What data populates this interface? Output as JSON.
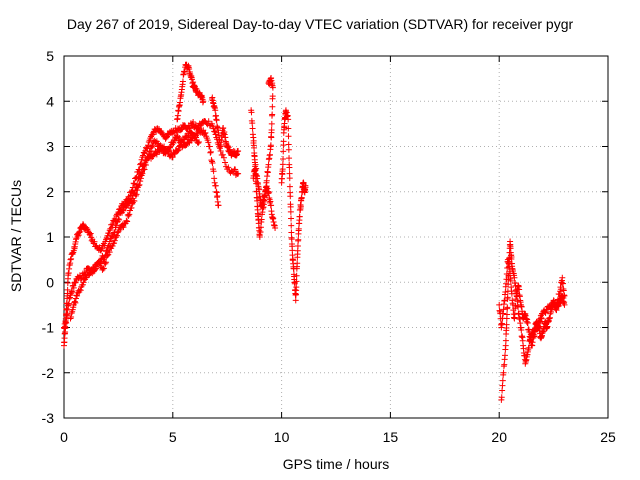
{
  "chart_data": {
    "type": "scatter",
    "title": "Day 267 of 2019, Sidereal Day-to-day VTEC variation (SDTVAR) for receiver pygr",
    "xlabel": "GPS time / hours",
    "ylabel": "SDTVAR / TECUs",
    "xlim": [
      0,
      25
    ],
    "ylim": [
      -3,
      5
    ],
    "xticks": [
      0,
      5,
      10,
      15,
      20,
      25
    ],
    "yticks": [
      -3,
      -2,
      -1,
      0,
      1,
      2,
      3,
      4,
      5
    ],
    "grid": true,
    "marker": "plus",
    "color": "#ff0000",
    "series": [
      {
        "name": "SDTVAR",
        "tracks": [
          [
            [
              0.0,
              -1.4
            ],
            [
              0.05,
              -1.1
            ],
            [
              0.1,
              -0.7
            ],
            [
              0.15,
              -0.3
            ],
            [
              0.2,
              0.2
            ],
            [
              0.3,
              0.5
            ],
            [
              0.45,
              0.7
            ],
            [
              0.55,
              0.95
            ],
            [
              0.7,
              1.1
            ],
            [
              0.85,
              1.25
            ],
            [
              1.0,
              1.2
            ],
            [
              1.15,
              1.1
            ],
            [
              1.3,
              0.95
            ],
            [
              1.5,
              0.8
            ],
            [
              1.7,
              0.7
            ],
            [
              1.9,
              0.9
            ],
            [
              2.1,
              1.15
            ],
            [
              2.3,
              1.35
            ],
            [
              2.5,
              1.55
            ],
            [
              2.7,
              1.7
            ],
            [
              2.9,
              1.8
            ],
            [
              3.1,
              2.0
            ],
            [
              3.3,
              2.3
            ],
            [
              3.5,
              2.6
            ],
            [
              3.7,
              2.85
            ],
            [
              3.9,
              3.1
            ],
            [
              4.1,
              3.3
            ],
            [
              4.3,
              3.4
            ],
            [
              4.5,
              3.3
            ],
            [
              4.7,
              3.2
            ],
            [
              4.9,
              3.3
            ],
            [
              5.1,
              3.35
            ],
            [
              5.3,
              3.4
            ],
            [
              5.5,
              3.45
            ],
            [
              5.7,
              3.4
            ],
            [
              5.9,
              3.5
            ],
            [
              6.1,
              3.4
            ],
            [
              6.3,
              3.5
            ],
            [
              6.5,
              3.55
            ],
            [
              6.8,
              3.5
            ],
            [
              7.0,
              3.2
            ],
            [
              7.2,
              2.9
            ],
            [
              7.5,
              2.5
            ],
            [
              7.8,
              2.45
            ],
            [
              8.0,
              2.4
            ]
          ],
          [
            [
              0.0,
              -1.0
            ],
            [
              0.1,
              -0.9
            ],
            [
              0.2,
              -0.5
            ],
            [
              0.35,
              -0.2
            ],
            [
              0.5,
              0.0
            ],
            [
              0.7,
              0.1
            ],
            [
              0.9,
              0.15
            ],
            [
              1.1,
              0.3
            ],
            [
              1.3,
              0.2
            ],
            [
              1.5,
              0.4
            ],
            [
              1.7,
              0.5
            ],
            [
              1.9,
              0.6
            ],
            [
              2.1,
              0.9
            ],
            [
              2.3,
              1.1
            ],
            [
              2.5,
              1.4
            ],
            [
              2.7,
              1.6
            ],
            [
              2.9,
              1.7
            ],
            [
              3.1,
              1.8
            ],
            [
              3.3,
              2.1
            ],
            [
              3.5,
              2.4
            ],
            [
              3.7,
              2.6
            ],
            [
              3.9,
              2.75
            ],
            [
              4.1,
              2.8
            ],
            [
              4.3,
              2.9
            ],
            [
              4.5,
              3.0
            ],
            [
              4.7,
              2.9
            ],
            [
              4.9,
              2.8
            ],
            [
              5.1,
              2.85
            ],
            [
              5.3,
              3.0
            ],
            [
              5.5,
              3.05
            ],
            [
              5.7,
              3.1
            ],
            [
              5.9,
              3.2
            ],
            [
              6.1,
              3.3
            ],
            [
              6.3,
              3.35
            ],
            [
              6.5,
              3.3
            ],
            [
              6.7,
              3.0
            ],
            [
              6.85,
              2.5
            ],
            [
              7.0,
              2.0
            ],
            [
              7.1,
              1.7
            ]
          ],
          [
            [
              0.3,
              -0.8
            ],
            [
              0.45,
              -0.5
            ],
            [
              0.6,
              -0.3
            ],
            [
              0.8,
              -0.1
            ],
            [
              1.0,
              0.1
            ],
            [
              1.2,
              0.2
            ],
            [
              1.4,
              0.3
            ],
            [
              1.6,
              0.45
            ],
            [
              1.8,
              0.3
            ],
            [
              2.0,
              0.6
            ],
            [
              2.2,
              0.8
            ],
            [
              2.4,
              1.0
            ],
            [
              2.6,
              1.2
            ],
            [
              2.8,
              1.3
            ],
            [
              3.0,
              1.5
            ],
            [
              3.2,
              1.8
            ],
            [
              3.4,
              2.1
            ],
            [
              3.6,
              2.4
            ],
            [
              3.8,
              2.7
            ],
            [
              4.0,
              3.0
            ],
            [
              4.2,
              3.1
            ],
            [
              4.4,
              3.0
            ],
            [
              4.6,
              2.85
            ],
            [
              4.8,
              2.95
            ],
            [
              5.0,
              3.1
            ],
            [
              5.2,
              3.2
            ],
            [
              5.4,
              3.1
            ],
            [
              5.6,
              3.2
            ],
            [
              5.8,
              3.3
            ],
            [
              6.0,
              3.2
            ],
            [
              6.2,
              3.1
            ]
          ],
          [
            [
              5.2,
              3.6
            ],
            [
              5.3,
              3.9
            ],
            [
              5.4,
              4.2
            ],
            [
              5.5,
              4.6
            ],
            [
              5.6,
              4.8
            ],
            [
              5.7,
              4.75
            ],
            [
              5.8,
              4.6
            ],
            [
              5.9,
              4.4
            ],
            [
              6.0,
              4.3
            ],
            [
              6.1,
              4.2
            ],
            [
              6.2,
              4.15
            ],
            [
              6.3,
              4.1
            ],
            [
              6.4,
              4.0
            ]
          ],
          [
            [
              6.8,
              4.05
            ],
            [
              6.9,
              3.9
            ],
            [
              7.0,
              3.6
            ],
            [
              7.1,
              3.3
            ],
            [
              7.2,
              3.0
            ],
            [
              7.3,
              3.4
            ],
            [
              7.4,
              3.2
            ],
            [
              7.5,
              3.0
            ],
            [
              7.6,
              2.9
            ],
            [
              7.7,
              2.8
            ],
            [
              7.8,
              2.9
            ],
            [
              7.9,
              2.8
            ],
            [
              8.0,
              2.9
            ]
          ],
          [
            [
              8.6,
              3.8
            ],
            [
              8.7,
              3.2
            ],
            [
              8.75,
              2.8
            ],
            [
              8.8,
              2.4
            ],
            [
              8.85,
              2.0
            ],
            [
              8.9,
              1.6
            ],
            [
              8.95,
              1.3
            ],
            [
              9.0,
              1.0
            ],
            [
              9.1,
              1.5
            ],
            [
              9.2,
              1.8
            ],
            [
              9.3,
              2.2
            ],
            [
              9.4,
              2.6
            ],
            [
              9.5,
              3.0
            ],
            [
              9.55,
              3.5
            ],
            [
              9.6,
              4.3
            ],
            [
              9.5,
              4.5
            ],
            [
              9.4,
              4.4
            ]
          ],
          [
            [
              8.7,
              2.3
            ],
            [
              8.8,
              2.6
            ],
            [
              8.9,
              2.2
            ],
            [
              9.0,
              1.9
            ],
            [
              9.1,
              1.7
            ],
            [
              9.2,
              1.9
            ],
            [
              9.3,
              2.1
            ],
            [
              9.4,
              2.0
            ],
            [
              9.5,
              1.7
            ],
            [
              9.6,
              1.4
            ],
            [
              9.7,
              1.2
            ]
          ],
          [
            [
              10.0,
              2.2
            ],
            [
              10.05,
              2.5
            ],
            [
              10.1,
              3.3
            ],
            [
              10.15,
              3.6
            ],
            [
              10.2,
              3.8
            ],
            [
              10.3,
              3.6
            ],
            [
              10.35,
              2.6
            ],
            [
              10.4,
              1.9
            ],
            [
              10.45,
              1.1
            ],
            [
              10.5,
              0.6
            ],
            [
              10.55,
              0.3
            ],
            [
              10.6,
              0.0
            ],
            [
              10.65,
              -0.4
            ],
            [
              10.7,
              0.3
            ],
            [
              10.75,
              0.8
            ],
            [
              10.8,
              1.3
            ],
            [
              10.85,
              1.6
            ],
            [
              10.9,
              1.8
            ],
            [
              10.95,
              2.0
            ],
            [
              11.0,
              2.2
            ],
            [
              11.05,
              2.0
            ],
            [
              11.1,
              2.1
            ]
          ],
          [
            [
              20.1,
              -2.6
            ],
            [
              20.2,
              -2.0
            ],
            [
              20.3,
              -1.4
            ],
            [
              20.35,
              -0.8
            ],
            [
              20.4,
              -0.2
            ],
            [
              20.45,
              0.4
            ],
            [
              20.5,
              0.9
            ],
            [
              20.55,
              0.6
            ],
            [
              20.6,
              0.3
            ],
            [
              20.7,
              0.1
            ],
            [
              20.8,
              -0.3
            ],
            [
              20.9,
              -0.7
            ],
            [
              21.0,
              -1.0
            ],
            [
              21.1,
              -1.4
            ],
            [
              21.2,
              -1.8
            ],
            [
              21.3,
              -1.6
            ],
            [
              21.4,
              -1.3
            ],
            [
              21.5,
              -1.1
            ],
            [
              21.6,
              -1.2
            ],
            [
              21.7,
              -1.0
            ],
            [
              21.8,
              -0.9
            ],
            [
              21.9,
              -0.8
            ],
            [
              22.0,
              -0.7
            ],
            [
              22.2,
              -0.6
            ],
            [
              22.4,
              -0.5
            ],
            [
              22.6,
              -0.5
            ],
            [
              22.8,
              -0.2
            ],
            [
              22.9,
              0.1
            ],
            [
              23.0,
              -0.3
            ]
          ],
          [
            [
              20.0,
              -0.5
            ],
            [
              20.1,
              -1.0
            ],
            [
              20.2,
              -0.6
            ],
            [
              20.3,
              -0.1
            ],
            [
              20.4,
              0.5
            ],
            [
              20.5,
              0.2
            ],
            [
              20.6,
              -0.4
            ],
            [
              20.7,
              -0.8
            ],
            [
              20.8,
              -0.2
            ],
            [
              20.9,
              -0.1
            ],
            [
              21.0,
              -0.5
            ],
            [
              21.1,
              -0.8
            ],
            [
              21.2,
              -0.7
            ],
            [
              21.3,
              -0.9
            ],
            [
              21.4,
              -1.2
            ],
            [
              21.5,
              -1.4
            ],
            [
              21.6,
              -1.1
            ],
            [
              21.7,
              -0.9
            ],
            [
              21.8,
              -1.0
            ],
            [
              21.9,
              -1.2
            ],
            [
              22.0,
              -1.1
            ],
            [
              22.1,
              -0.9
            ],
            [
              22.2,
              -1.0
            ],
            [
              22.3,
              -0.8
            ],
            [
              22.4,
              -0.6
            ],
            [
              22.5,
              -0.4
            ],
            [
              22.6,
              -0.6
            ],
            [
              22.7,
              -0.5
            ],
            [
              22.8,
              -0.4
            ],
            [
              22.9,
              -0.3
            ],
            [
              23.0,
              -0.5
            ]
          ]
        ]
      }
    ]
  }
}
